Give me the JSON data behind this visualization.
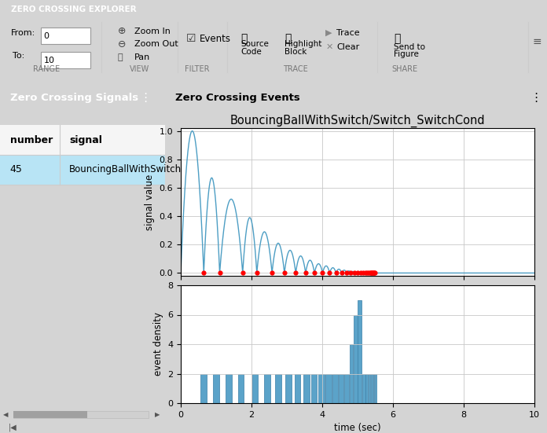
{
  "title": "BouncingBallWithSwitch/Switch_SwitchCond",
  "top_bar_color": "#1b3a5c",
  "top_bar_text": "ZERO CROSSING EXPLORER",
  "panel_header_color": "#1b4f72",
  "panel_header_text": "Zero Crossing Signals",
  "events_header_text": "Zero Crossing Events",
  "table_number": "45",
  "table_signal": "BouncingBallWithSwitch",
  "from_val": "0",
  "to_val": "10",
  "signal_line_color": "#4d9ec4",
  "dot_color": "#ff0000",
  "bar_color": "#5ba3c9",
  "bar_edge_color": "#3a7fa8",
  "bg_color": "#d4d4d4",
  "plot_bg_color": "#ffffff",
  "plot_area_bg": "#e8e8e8",
  "grid_color": "#c8c8c8",
  "toolbar_bg": "#f0f0f0",
  "upper_xlim": [
    0,
    10
  ],
  "upper_ylim": [
    -0.05,
    1.05
  ],
  "lower_xlim": [
    0,
    10
  ],
  "lower_ylim": [
    0,
    8
  ],
  "upper_yticks": [
    0,
    0.2,
    0.4,
    0.6,
    0.8,
    1.0
  ],
  "lower_yticks": [
    0,
    2,
    4,
    6,
    8
  ],
  "xticks": [
    0,
    2,
    4,
    6,
    8,
    10
  ],
  "upper_ylabel": "signal value",
  "lower_ylabel": "event density",
  "xlabel": "time (sec)",
  "dot_times": [
    0.65,
    1.1,
    1.75,
    2.15,
    2.58,
    2.93,
    3.25,
    3.53,
    3.78,
    4.01,
    4.21,
    4.39,
    4.55,
    4.69,
    4.81,
    4.92,
    5.01,
    5.09,
    5.16,
    5.22,
    5.27,
    5.31,
    5.35,
    5.38,
    5.41,
    5.43,
    5.45,
    5.47,
    5.49
  ],
  "bounce_times": [
    0,
    0.65,
    1.1,
    1.75,
    2.15,
    2.58,
    2.93,
    3.25,
    3.53,
    3.78,
    4.01,
    4.21,
    4.39,
    4.55,
    4.69,
    4.81,
    4.92,
    5.01,
    5.09,
    5.16,
    5.22,
    5.27,
    5.31,
    5.35,
    5.38,
    5.41,
    5.43,
    5.45,
    5.47,
    5.49,
    5.5
  ],
  "bounce_peaks": [
    1.0,
    0.67,
    0.52,
    0.39,
    0.29,
    0.21,
    0.16,
    0.12,
    0.09,
    0.065,
    0.05,
    0.037,
    0.027,
    0.02,
    0.015,
    0.011,
    0.008,
    0.006,
    0.004,
    0.003,
    0.002,
    0.0015,
    0.001,
    0.0008,
    0.0005,
    0.0003,
    0.0002,
    0.0001,
    5e-05,
    0.0,
    0.0
  ],
  "bar_data": [
    [
      0.55,
      0.75,
      2
    ],
    [
      0.9,
      1.1,
      2
    ],
    [
      1.25,
      1.45,
      2
    ],
    [
      1.6,
      1.8,
      2
    ],
    [
      2.0,
      2.2,
      2
    ],
    [
      2.35,
      2.55,
      2
    ],
    [
      2.65,
      2.85,
      2
    ],
    [
      2.95,
      3.15,
      2
    ],
    [
      3.2,
      3.4,
      2
    ],
    [
      3.45,
      3.65,
      2
    ],
    [
      3.67,
      3.87,
      2
    ],
    [
      3.88,
      4.08,
      2
    ],
    [
      4.08,
      4.28,
      2
    ],
    [
      4.28,
      4.46,
      2
    ],
    [
      4.46,
      4.62,
      2
    ],
    [
      4.62,
      4.76,
      2
    ],
    [
      4.76,
      4.88,
      4
    ],
    [
      4.88,
      5.0,
      6
    ],
    [
      5.0,
      5.12,
      7
    ],
    [
      5.12,
      5.22,
      2
    ],
    [
      5.22,
      5.3,
      2
    ],
    [
      5.3,
      5.37,
      2
    ],
    [
      5.37,
      5.43,
      2
    ],
    [
      5.43,
      5.48,
      2
    ],
    [
      5.48,
      5.53,
      2
    ]
  ]
}
